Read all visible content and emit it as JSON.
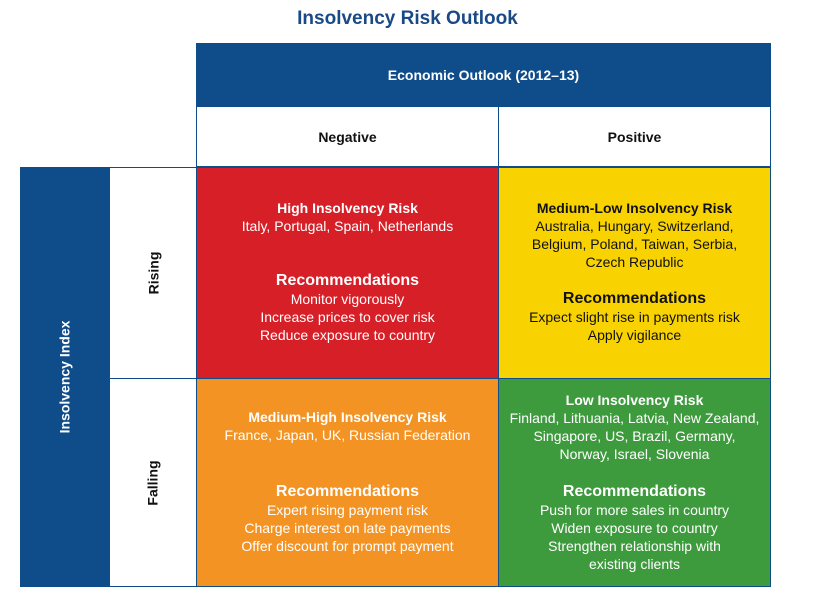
{
  "title": "Insolvency Risk Outlook",
  "economic_outlook": {
    "label": "Economic Outlook (2012–13)",
    "negative": "Negative",
    "positive": "Positive"
  },
  "insolvency_index": {
    "label": "Insolvency Index",
    "rising": "Rising",
    "falling": "Falling"
  },
  "cells": {
    "rising_negative": {
      "risk": "High Insolvency Risk",
      "countries": [
        "Italy, Portugal, Spain, Netherlands"
      ],
      "rec_title": "Recommendations",
      "recs": [
        "Monitor vigorously",
        "Increase prices to cover risk",
        "Reduce exposure to country"
      ]
    },
    "rising_positive": {
      "risk": "Medium-Low Insolvency Risk",
      "countries": [
        "Australia, Hungary, Switzerland,",
        "Belgium, Poland, Taiwan, Serbia,",
        "Czech Republic"
      ],
      "rec_title": "Recommendations",
      "recs": [
        "Expect slight rise in payments risk",
        "Apply vigilance"
      ]
    },
    "falling_negative": {
      "risk": "Medium-High Insolvency Risk",
      "countries": [
        "France, Japan, UK, Russian Federation"
      ],
      "rec_title": "Recommendations",
      "recs": [
        "Expert rising payment risk",
        "Charge interest on late payments",
        "Offer discount for prompt payment"
      ]
    },
    "falling_positive": {
      "risk": "Low Insolvency Risk",
      "countries": [
        "Finland, Lithuania, Latvia, New Zealand,",
        "Singapore, US, Brazil, Germany,",
        "Norway, Israel, Slovenia"
      ],
      "rec_title": "Recommendations",
      "recs": [
        "Push for more sales in country",
        "Widen exposure to country",
        "Strengthen relationship with",
        "existing clients"
      ]
    }
  },
  "colors": {
    "header_blue": "#0f4d8a",
    "high_risk": "#d71f27",
    "medium_low_risk": "#f9d301",
    "medium_high_risk": "#f39323",
    "low_risk": "#3d9b3d"
  }
}
